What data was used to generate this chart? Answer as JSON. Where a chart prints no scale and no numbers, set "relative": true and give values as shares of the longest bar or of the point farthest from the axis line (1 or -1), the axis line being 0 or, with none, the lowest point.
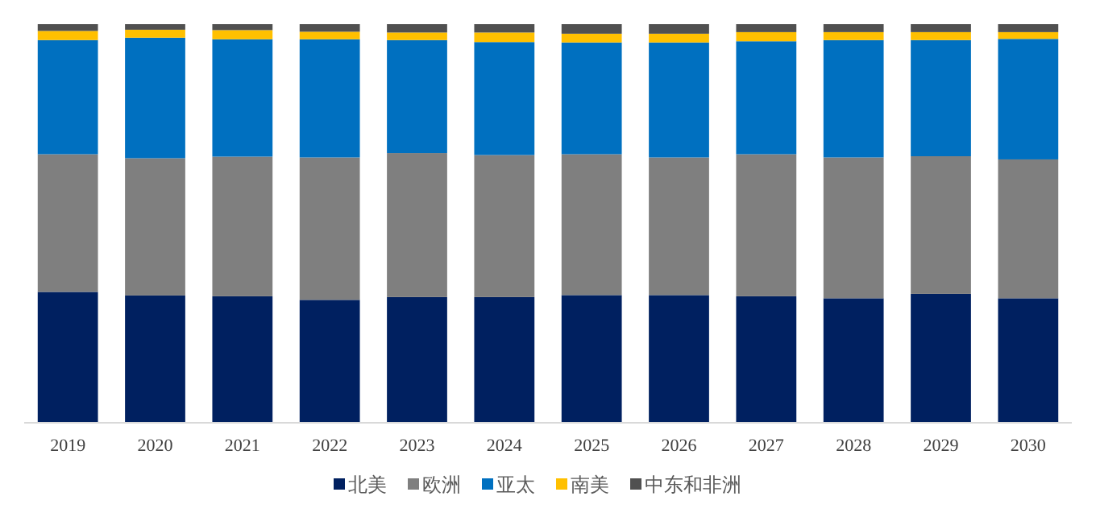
{
  "chart_data": {
    "type": "bar",
    "stacked": true,
    "relative": true,
    "legend": "bottom",
    "categories": [
      "2019",
      "2020",
      "2021",
      "2022",
      "2023",
      "2024",
      "2025",
      "2026",
      "2027",
      "2028",
      "2029",
      "2030"
    ],
    "series": [
      {
        "name": "北美",
        "color": "#002060",
        "values": [
          0.327,
          0.318,
          0.316,
          0.307,
          0.314,
          0.314,
          0.319,
          0.319,
          0.316,
          0.311,
          0.322,
          0.311
        ]
      },
      {
        "name": "欧洲",
        "color": "#7f7f7f",
        "values": [
          0.346,
          0.345,
          0.351,
          0.358,
          0.362,
          0.357,
          0.354,
          0.346,
          0.357,
          0.354,
          0.346,
          0.349
        ]
      },
      {
        "name": "亚太",
        "color": "#0070c0",
        "values": [
          0.287,
          0.303,
          0.295,
          0.297,
          0.284,
          0.284,
          0.281,
          0.289,
          0.284,
          0.295,
          0.292,
          0.303
        ]
      },
      {
        "name": "南美",
        "color": "#ffc000",
        "values": [
          0.023,
          0.02,
          0.023,
          0.019,
          0.019,
          0.024,
          0.022,
          0.022,
          0.023,
          0.02,
          0.02,
          0.017
        ]
      },
      {
        "name": "中东和非洲",
        "color": "#505050",
        "values": [
          0.017,
          0.014,
          0.015,
          0.019,
          0.021,
          0.021,
          0.024,
          0.024,
          0.02,
          0.02,
          0.02,
          0.02
        ]
      }
    ]
  }
}
